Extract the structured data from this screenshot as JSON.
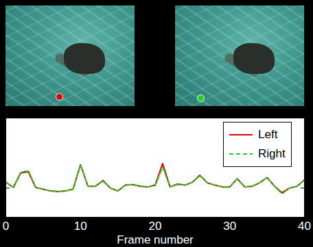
{
  "chart_data": {
    "type": "line",
    "x": [
      0,
      1,
      2,
      3,
      4,
      5,
      6,
      7,
      8,
      9,
      10,
      11,
      12,
      13,
      14,
      15,
      16,
      17,
      18,
      19,
      20,
      21,
      22,
      23,
      24,
      25,
      26,
      27,
      28,
      29,
      30,
      31,
      32,
      33,
      34,
      35,
      36,
      37,
      38,
      39,
      40
    ],
    "series": [
      {
        "name": "Left",
        "color": "#dd0000",
        "line_style": "solid",
        "values": [
          0.5,
          0.05,
          1.3,
          1.4,
          0.05,
          -0.1,
          -0.25,
          -0.3,
          -0.25,
          -0.1,
          2.0,
          0.15,
          0.15,
          0.65,
          0.0,
          -0.25,
          0.25,
          0.3,
          0.15,
          0.1,
          0.25,
          2.1,
          0.1,
          0.35,
          0.25,
          0.5,
          1.1,
          0.45,
          0.25,
          0.1,
          0.1,
          0.8,
          0.1,
          0.15,
          0.45,
          0.9,
          0.15,
          -0.4,
          0.0,
          0.15,
          0.7
        ]
      },
      {
        "name": "Right",
        "color": "#22cc22",
        "line_style": "dashed",
        "values": [
          0.5,
          0.05,
          1.35,
          1.5,
          0.05,
          -0.1,
          -0.25,
          -0.3,
          -0.25,
          -0.1,
          2.0,
          0.15,
          0.15,
          0.6,
          0.0,
          -0.25,
          0.25,
          0.3,
          0.15,
          0.1,
          0.2,
          1.8,
          0.1,
          0.3,
          0.25,
          0.5,
          1.05,
          0.45,
          0.25,
          0.1,
          0.1,
          0.8,
          0.1,
          0.15,
          0.45,
          0.9,
          0.15,
          -0.5,
          0.0,
          0.15,
          0.7
        ]
      }
    ],
    "x_label": "Frame number",
    "xlim": [
      0,
      40
    ],
    "xticks": [
      0,
      10,
      20,
      30,
      40
    ],
    "ylim": [
      -2.5,
      6
    ],
    "yticks": [
      0
    ],
    "tick_labels": "x",
    "grid": false,
    "legend": "top-right",
    "marker": "none"
  }
}
